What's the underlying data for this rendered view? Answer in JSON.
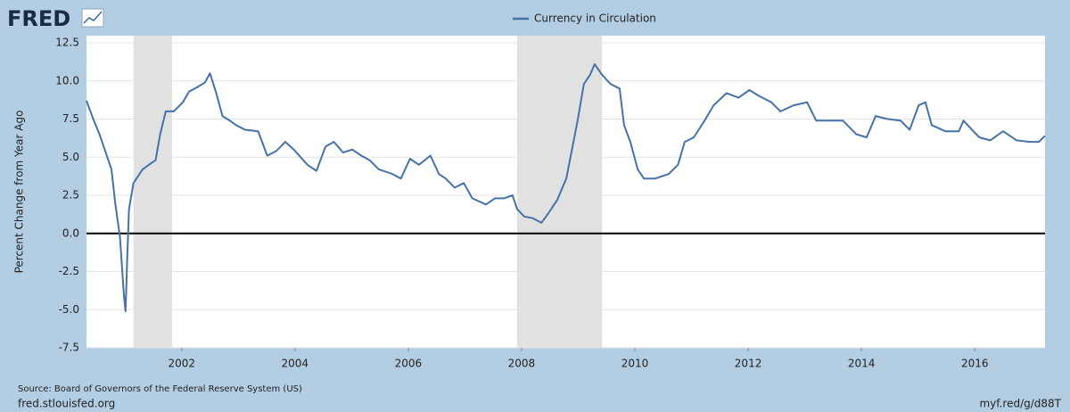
{
  "logo": "FRED",
  "chart_data": {
    "type": "line",
    "y_label": "Percent Change from Year Ago",
    "series": [
      {
        "name": "Currency in Circulation",
        "color": "#4572a7",
        "x": [
          2000.32,
          2000.44,
          2000.55,
          2000.65,
          2000.76,
          2000.83,
          2000.91,
          2000.98,
          2001.01,
          2001.04,
          2001.07,
          2001.15,
          2001.31,
          2001.46,
          2001.54,
          2001.62,
          2001.72,
          2001.86,
          2002.02,
          2002.13,
          2002.28,
          2002.41,
          2002.5,
          2002.61,
          2002.72,
          2002.85,
          2002.96,
          2003.12,
          2003.35,
          2003.51,
          2003.67,
          2003.83,
          2003.98,
          2004.22,
          2004.38,
          2004.54,
          2004.69,
          2004.85,
          2005.01,
          2005.17,
          2005.32,
          2005.48,
          2005.72,
          2005.87,
          2006.03,
          2006.19,
          2006.39,
          2006.54,
          2006.66,
          2006.82,
          2006.98,
          2007.13,
          2007.37,
          2007.53,
          2007.69,
          2007.84,
          2007.92,
          2008.05,
          2008.2,
          2008.35,
          2008.47,
          2008.63,
          2008.79,
          2008.9,
          2008.99,
          2009.1,
          2009.21,
          2009.29,
          2009.42,
          2009.57,
          2009.73,
          2009.81,
          2009.92,
          2010.05,
          2010.16,
          2010.36,
          2010.6,
          2010.76,
          2010.88,
          2011.04,
          2011.23,
          2011.39,
          2011.62,
          2011.83,
          2012.02,
          2012.2,
          2012.41,
          2012.57,
          2012.8,
          2013.04,
          2013.2,
          2013.43,
          2013.67,
          2013.91,
          2014.09,
          2014.25,
          2014.46,
          2014.69,
          2014.85,
          2015.01,
          2015.13,
          2015.24,
          2015.48,
          2015.72,
          2015.8,
          2015.95,
          2016.08,
          2016.27,
          2016.5,
          2016.74,
          2016.98,
          2017.13,
          2017.24
        ],
        "values": [
          8.7,
          7.5,
          6.5,
          5.4,
          4.2,
          1.9,
          -0.2,
          -4.0,
          -5.1,
          -1.6,
          1.6,
          3.3,
          4.2,
          4.6,
          4.8,
          6.5,
          8.0,
          8.0,
          8.6,
          9.3,
          9.6,
          9.9,
          10.5,
          9.2,
          7.7,
          7.4,
          7.1,
          6.8,
          6.7,
          5.1,
          5.4,
          6.0,
          5.5,
          4.5,
          4.1,
          5.7,
          6.0,
          5.3,
          5.5,
          5.1,
          4.8,
          4.2,
          3.9,
          3.6,
          4.9,
          4.5,
          5.1,
          3.9,
          3.6,
          3.0,
          3.3,
          2.3,
          1.9,
          2.3,
          2.3,
          2.5,
          1.6,
          1.1,
          1.0,
          0.7,
          1.3,
          2.2,
          3.6,
          5.7,
          7.4,
          9.8,
          10.4,
          11.1,
          10.4,
          9.8,
          9.5,
          7.1,
          6.0,
          4.2,
          3.6,
          3.6,
          3.9,
          4.5,
          6.0,
          6.3,
          7.4,
          8.4,
          9.2,
          8.9,
          9.4,
          9.0,
          8.6,
          8.0,
          8.4,
          8.6,
          7.4,
          7.4,
          7.4,
          6.5,
          6.3,
          7.7,
          7.5,
          7.4,
          6.8,
          8.4,
          8.6,
          7.1,
          6.7,
          6.7,
          7.4,
          6.8,
          6.3,
          6.1,
          6.7,
          6.1,
          6.0,
          6.0,
          6.4
        ]
      }
    ],
    "recessions": [
      [
        2001.15,
        2001.83
      ],
      [
        2007.92,
        2009.42
      ]
    ],
    "xlim": [
      2000.32,
      2017.24
    ],
    "xticks": [
      2002,
      2004,
      2006,
      2008,
      2010,
      2012,
      2014,
      2016
    ],
    "ylim": [
      -7.5,
      12.5
    ],
    "yticks": [
      12.5,
      {
        "value": 10,
        "label": "10.0"
      },
      7.5,
      {
        "value": 5,
        "label": "5.0"
      },
      2.5,
      {
        "value": 0,
        "label": "0.0"
      },
      -2.5,
      {
        "value": -5,
        "label": "-5.0"
      },
      -7.5
    ],
    "grid": true,
    "zero_line": true,
    "source": "Source: Board of Governors of the Federal Reserve System (US)",
    "site": "fred.stlouisfed.org",
    "short_url": "myf.red/g/d88T"
  }
}
